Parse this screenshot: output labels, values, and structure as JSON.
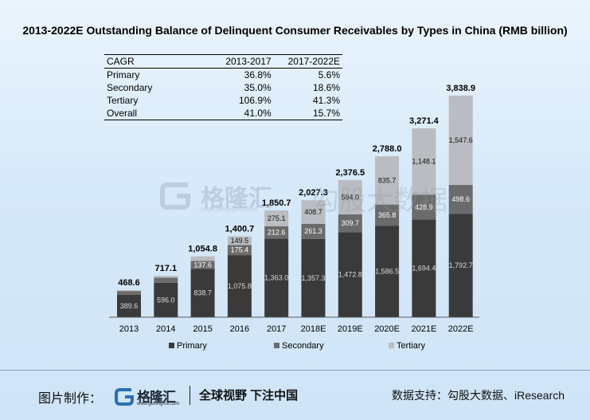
{
  "title": "2013-2022E Outstanding Balance of Delinquent Consumer Receivables by Types in China (RMB billion)",
  "cagr_table": {
    "headers": [
      "CAGR",
      "2013-2017",
      "2017-2022E"
    ],
    "rows": [
      [
        "Primary",
        "36.8%",
        "5.6%"
      ],
      [
        "Secondary",
        "35.0%",
        "18.6%"
      ],
      [
        "Tertiary",
        "106.9%",
        "41.3%"
      ],
      [
        "Overall",
        "41.0%",
        "15.7%"
      ]
    ]
  },
  "chart_data": {
    "type": "bar",
    "stacked": true,
    "categories": [
      "2013",
      "2014",
      "2015",
      "2016",
      "2017",
      "2018E",
      "2019E",
      "2020E",
      "2021E",
      "2022E"
    ],
    "series": [
      {
        "name": "Primary",
        "values": [
          389.6,
          596.0,
          838.7,
          1075.8,
          1363.0,
          1357.3,
          1472.8,
          1586.5,
          1694.4,
          1792.7
        ],
        "labels": [
          "389.6",
          "596.0",
          "838.7",
          "1,075.8",
          "1,363.0",
          "1,357.3",
          "1,472.8",
          "1,586.5",
          "1,694.4",
          "1,792.7"
        ],
        "color": "#3a3a3a"
      },
      {
        "name": "Secondary",
        "values": [
          64.0,
          88.2,
          137.6,
          175.4,
          212.6,
          261.3,
          309.7,
          365.8,
          428.9,
          498.6
        ],
        "labels": [
          "64.0",
          "88.2",
          "137.6",
          "175.4",
          "212.6",
          "261.3",
          "309.7",
          "365.8",
          "428.9",
          "498.6"
        ],
        "color": "#6b6b6b"
      },
      {
        "name": "Tertiary",
        "values": [
          15.0,
          32.9,
          78.5,
          149.5,
          275.1,
          408.7,
          594.0,
          835.7,
          1148.1,
          1547.6
        ],
        "labels": [
          "15.0",
          "32.9",
          "78.5",
          "149.5",
          "275.1",
          "408.7",
          "594.0",
          "835.7",
          "1,148.1",
          "1,547.6"
        ],
        "color": "#b9bcc0"
      }
    ],
    "totals": [
      "468.6",
      "717.1",
      "1,054.8",
      "1,400.7",
      "1,850.7",
      "2,027.3",
      "2,376.5",
      "2,788.0",
      "3,271.4",
      "3,838.9"
    ],
    "legend_position": "bottom",
    "grid": false,
    "ylim": [
      0,
      3838.9
    ]
  },
  "watermark": {
    "brand": "格隆汇",
    "url": "www.gelonghui.com",
    "partner": "勾股大数据"
  },
  "footer": {
    "made_by_label": "图片制作：",
    "logo_text": "格隆汇",
    "logo_url": "www.gelonghui.com",
    "slogan": "全球视野 下注中国",
    "source": "数据支持：勾股大数据、iResearch"
  }
}
